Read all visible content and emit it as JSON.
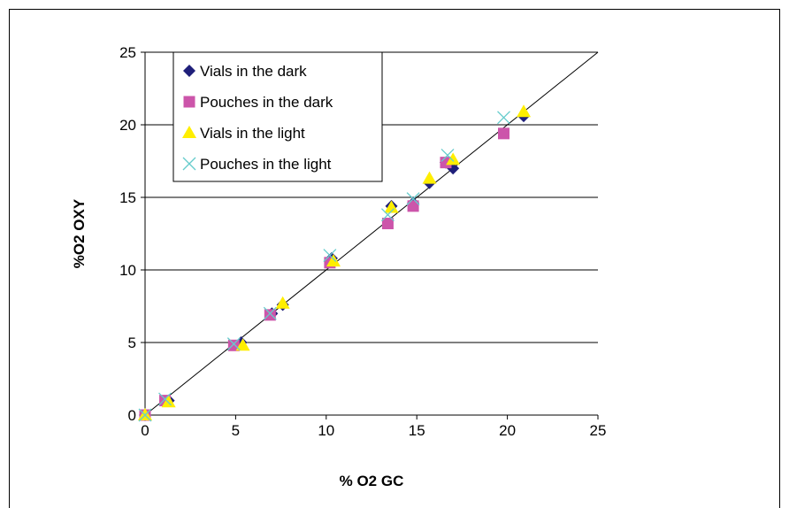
{
  "chart_data": {
    "type": "scatter",
    "title": "",
    "xlabel": "% O2 GC",
    "ylabel": "%O2 OXY",
    "xlim": [
      0,
      25
    ],
    "ylim": [
      0,
      25
    ],
    "xticks": [
      0,
      5,
      10,
      15,
      20,
      25
    ],
    "yticks": [
      0,
      5,
      10,
      15,
      20,
      25
    ],
    "grid": "horizontal",
    "legend_position": "top-left",
    "reference_line": {
      "from": [
        0,
        0
      ],
      "to": [
        25,
        25
      ]
    },
    "series": [
      {
        "name": "Vials in the dark",
        "marker": "diamond",
        "color": "#1f1f7a",
        "points": [
          [
            0,
            0
          ],
          [
            1.3,
            1.0
          ],
          [
            5.3,
            5.0
          ],
          [
            7.0,
            7.0
          ],
          [
            7.6,
            7.6
          ],
          [
            10.3,
            10.8
          ],
          [
            13.6,
            14.4
          ],
          [
            14.8,
            14.6
          ],
          [
            15.7,
            16.0
          ],
          [
            16.6,
            17.4
          ],
          [
            17.0,
            17.0
          ],
          [
            20.9,
            20.6
          ]
        ]
      },
      {
        "name": "Pouches in the dark",
        "marker": "square",
        "color": "#cc55aa",
        "points": [
          [
            0,
            0
          ],
          [
            1.1,
            1.0
          ],
          [
            4.9,
            4.8
          ],
          [
            6.9,
            6.9
          ],
          [
            10.2,
            10.5
          ],
          [
            13.4,
            13.2
          ],
          [
            14.8,
            14.4
          ],
          [
            16.6,
            17.4
          ],
          [
            19.8,
            19.4
          ]
        ]
      },
      {
        "name": "Vials in the light",
        "marker": "triangle",
        "color": "#ffee00",
        "points": [
          [
            0,
            0
          ],
          [
            1.3,
            0.9
          ],
          [
            5.4,
            4.8
          ],
          [
            7.6,
            7.7
          ],
          [
            10.4,
            10.6
          ],
          [
            13.6,
            14.3
          ],
          [
            15.7,
            16.3
          ],
          [
            17.0,
            17.6
          ],
          [
            20.9,
            20.9
          ]
        ]
      },
      {
        "name": "Pouches in the light",
        "marker": "x",
        "color": "#66cccc",
        "points": [
          [
            0,
            0
          ],
          [
            1.1,
            1.1
          ],
          [
            4.9,
            4.9
          ],
          [
            6.9,
            7.0
          ],
          [
            10.2,
            11.0
          ],
          [
            13.4,
            13.8
          ],
          [
            14.8,
            14.9
          ],
          [
            16.7,
            17.9
          ],
          [
            19.8,
            20.5
          ]
        ]
      }
    ]
  }
}
